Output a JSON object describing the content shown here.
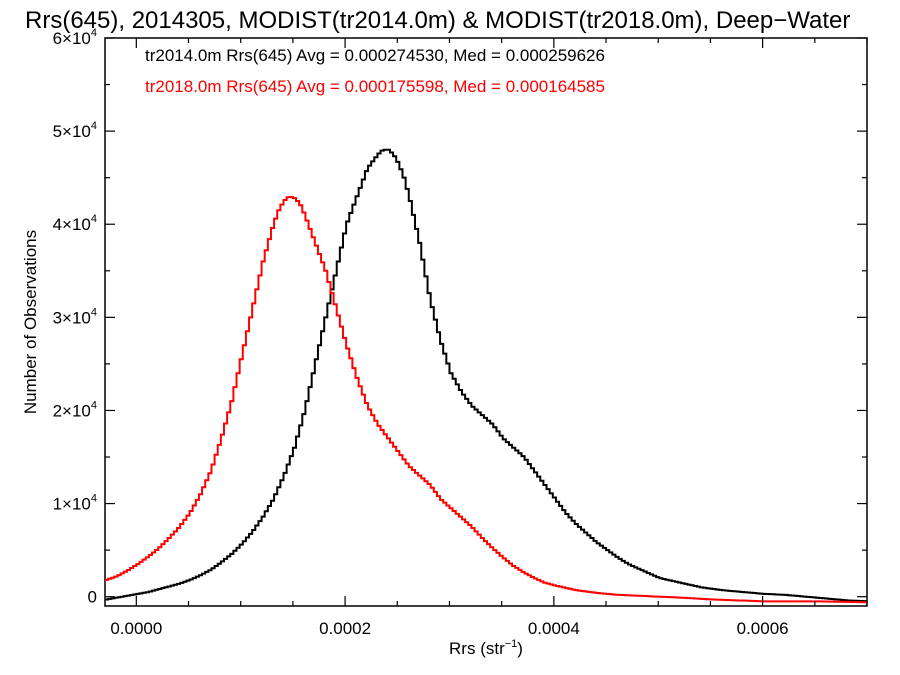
{
  "chart_data": {
    "type": "line",
    "title": "Rrs(645), 2014305, MODIST(tr2014.0m) & MODIST(tr2018.0m), Deep−Water",
    "xlabel_main": "Rrs (str",
    "xlabel_sup": "−1",
    "xlabel_close": ")",
    "ylabel": "Number of Observations",
    "xlim": [
      -3e-05,
      0.0007
    ],
    "ylim": [
      -1000,
      60000
    ],
    "x_ticks": [
      {
        "value": 0.0,
        "label": "0.0000"
      },
      {
        "value": 0.0002,
        "label": "0.0002"
      },
      {
        "value": 0.0004,
        "label": "0.0004"
      },
      {
        "value": 0.0006,
        "label": "0.0006"
      }
    ],
    "y_ticks": [
      {
        "value": 0,
        "mant": "0",
        "exp": ""
      },
      {
        "value": 10000,
        "mant": "1×10",
        "exp": "4"
      },
      {
        "value": 20000,
        "mant": "2×10",
        "exp": "4"
      },
      {
        "value": 30000,
        "mant": "3×10",
        "exp": "4"
      },
      {
        "value": 40000,
        "mant": "4×10",
        "exp": "4"
      },
      {
        "value": 50000,
        "mant": "5×10",
        "exp": "4"
      },
      {
        "value": 60000,
        "mant": "6×10",
        "exp": "4"
      }
    ],
    "grid": false,
    "legend_position": "top-left",
    "series": [
      {
        "name": "tr2014.0m Rrs(645) Avg = 0.000274530, Med = 0.000259626",
        "color": "#000000",
        "x": [
          -3e-05,
          -2e-05,
          -1e-05,
          0.0,
          1e-05,
          2e-05,
          3e-05,
          4e-05,
          5e-05,
          6e-05,
          7e-05,
          8e-05,
          9e-05,
          0.0001,
          0.00011,
          0.00012,
          0.00013,
          0.00014,
          0.00015,
          0.00016,
          0.00017,
          0.00018,
          0.00019,
          0.0002,
          0.00021,
          0.00022,
          0.00023,
          0.000235,
          0.00024,
          0.000245,
          0.00025,
          0.000255,
          0.00026,
          0.00027,
          0.00028,
          0.00029,
          0.0003,
          0.00031,
          0.00032,
          0.00033,
          0.00034,
          0.00035,
          0.00036,
          0.00037,
          0.00038,
          0.00039,
          0.0004,
          0.00041,
          0.00042,
          0.00043,
          0.00044,
          0.00045,
          0.00046,
          0.00047,
          0.00048,
          0.00049,
          0.0005,
          0.00052,
          0.00054,
          0.00056,
          0.00058,
          0.0006,
          0.00062,
          0.00064,
          0.00066,
          0.00068,
          0.0007
        ],
        "y": [
          -300,
          -100,
          100,
          300,
          500,
          800,
          1100,
          1400,
          1800,
          2300,
          2900,
          3700,
          4600,
          5700,
          7000,
          8600,
          10500,
          13000,
          16000,
          20000,
          25000,
          30000,
          35000,
          40000,
          43000,
          46000,
          47500,
          48000,
          48000,
          47500,
          46500,
          45000,
          43000,
          38000,
          32000,
          27500,
          24000,
          22000,
          20500,
          19500,
          18500,
          17000,
          16000,
          15000,
          13500,
          12000,
          10500,
          9000,
          7800,
          6800,
          5800,
          5000,
          4200,
          3500,
          3000,
          2500,
          2000,
          1500,
          1000,
          700,
          500,
          300,
          200,
          0,
          -200,
          -400,
          -500
        ]
      },
      {
        "name": "tr2018.0m Rrs(645) Avg = 0.000175598, Med = 0.000164585",
        "color": "#ff0000",
        "x": [
          -3e-05,
          -2e-05,
          -1e-05,
          0.0,
          1e-05,
          2e-05,
          3e-05,
          4e-05,
          5e-05,
          6e-05,
          7e-05,
          8e-05,
          9e-05,
          0.0001,
          0.00011,
          0.00012,
          0.00013,
          0.000135,
          0.00014,
          0.000145,
          0.00015,
          0.000155,
          0.00016,
          0.00017,
          0.00018,
          0.00019,
          0.0002,
          0.00021,
          0.00022,
          0.00023,
          0.00024,
          0.00025,
          0.00026,
          0.00027,
          0.00028,
          0.00029,
          0.0003,
          0.00031,
          0.00032,
          0.00033,
          0.00034,
          0.00035,
          0.00036,
          0.00037,
          0.00038,
          0.00039,
          0.0004,
          0.00042,
          0.00044,
          0.00046,
          0.00048,
          0.0005,
          0.00052,
          0.00055,
          0.0006,
          0.00065,
          0.0007
        ],
        "y": [
          1800,
          2200,
          2800,
          3500,
          4300,
          5200,
          6300,
          7500,
          9000,
          11000,
          13500,
          17000,
          21000,
          26000,
          31000,
          36000,
          40000,
          41500,
          42500,
          43000,
          42800,
          42300,
          41000,
          38000,
          35000,
          31000,
          27000,
          23500,
          20500,
          18500,
          17000,
          15500,
          14000,
          13000,
          12000,
          10500,
          9500,
          8500,
          7500,
          6300,
          5200,
          4200,
          3300,
          2600,
          2000,
          1500,
          1200,
          700,
          400,
          200,
          100,
          0,
          -100,
          -300,
          -500,
          -500,
          -600
        ]
      }
    ]
  }
}
